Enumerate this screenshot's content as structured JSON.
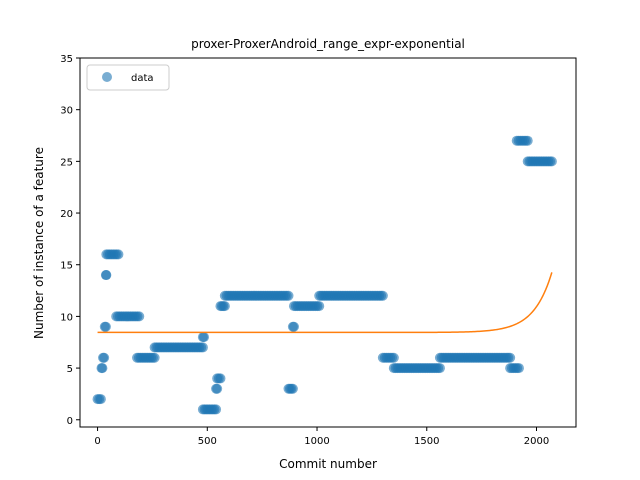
{
  "chart_data": {
    "type": "scatter",
    "title": "proxer-ProxerAndroid_range_expr-exponential",
    "xlabel": "Commit number",
    "ylabel": "Number of instance of a feature",
    "xlim": [
      -80,
      2180
    ],
    "ylim": [
      -0.7,
      35
    ],
    "xticks": [
      0,
      500,
      1000,
      1500,
      2000
    ],
    "yticks": [
      0,
      5,
      10,
      15,
      20,
      25,
      30,
      35
    ],
    "legend": {
      "placement": "top-left",
      "entries": [
        "data"
      ]
    },
    "grid": false,
    "colors": {
      "scatter": "#1f77b4",
      "fit": "#ff7f0e"
    },
    "series": [
      {
        "name": "data",
        "kind": "scatter",
        "segments": [
          {
            "x_start": 0,
            "x_end": 15,
            "y": 2
          },
          {
            "x_start": 18,
            "x_end": 22,
            "y": 5
          },
          {
            "x_start": 25,
            "x_end": 30,
            "y": 6
          },
          {
            "x_start": 33,
            "x_end": 38,
            "y": 9
          },
          {
            "x_start": 38,
            "x_end": 40,
            "y": 14
          },
          {
            "x_start": 40,
            "x_end": 95,
            "y": 16
          },
          {
            "x_start": 85,
            "x_end": 190,
            "y": 10
          },
          {
            "x_start": 180,
            "x_end": 260,
            "y": 6
          },
          {
            "x_start": 260,
            "x_end": 480,
            "y": 7
          },
          {
            "x_start": 480,
            "x_end": 485,
            "y": 8
          },
          {
            "x_start": 480,
            "x_end": 540,
            "y": 1
          },
          {
            "x_start": 540,
            "x_end": 545,
            "y": 3
          },
          {
            "x_start": 545,
            "x_end": 560,
            "y": 4
          },
          {
            "x_start": 560,
            "x_end": 580,
            "y": 11
          },
          {
            "x_start": 580,
            "x_end": 870,
            "y": 12
          },
          {
            "x_start": 870,
            "x_end": 890,
            "y": 3
          },
          {
            "x_start": 890,
            "x_end": 895,
            "y": 9
          },
          {
            "x_start": 895,
            "x_end": 1010,
            "y": 11
          },
          {
            "x_start": 1010,
            "x_end": 1300,
            "y": 12
          },
          {
            "x_start": 1300,
            "x_end": 1350,
            "y": 6
          },
          {
            "x_start": 1350,
            "x_end": 1560,
            "y": 5
          },
          {
            "x_start": 1560,
            "x_end": 1880,
            "y": 6
          },
          {
            "x_start": 1880,
            "x_end": 1920,
            "y": 5
          },
          {
            "x_start": 1910,
            "x_end": 1960,
            "y": 27
          },
          {
            "x_start": 1960,
            "x_end": 2070,
            "y": 25
          }
        ]
      },
      {
        "name": "",
        "kind": "line",
        "model": "exponential",
        "a": 8.45,
        "b": 7.7e-11,
        "c": 0.0121,
        "x_range": [
          0,
          2070
        ]
      }
    ]
  }
}
